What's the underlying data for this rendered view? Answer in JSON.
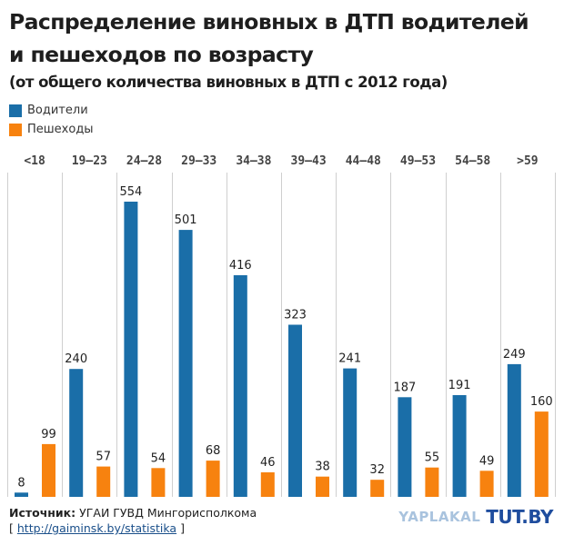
{
  "header": {
    "title_line1": "Распределение виновных в ДТП водителей",
    "title_line2": "и пешеходов по возрасту",
    "subtitle": "(от общего количества виновных в ДТП с 2012 года)"
  },
  "legend": [
    {
      "label": "Водители",
      "color": "#1a6ea8"
    },
    {
      "label": "Пешеходы",
      "color": "#f7820f"
    }
  ],
  "footer": {
    "source_label": "Источник:",
    "source_text": "УГАИ ГУВД Мингорисполкома",
    "link_open": "[",
    "link": "http://gaiminsk.by/statistika",
    "link_close": "]",
    "watermark1": "YAPLAKAL",
    "watermark2": "TUT.BY"
  },
  "chart_data": {
    "type": "bar",
    "title": "Распределение виновных в ДТП водителей и пешеходов по возрасту",
    "subtitle": "(от общего количества виновных в ДТП с 2012 года)",
    "xlabel": "",
    "ylabel": "",
    "categories": [
      "<18",
      "19-23",
      "24-28",
      "29-33",
      "34-38",
      "39-43",
      "44-48",
      "49-53",
      "54-58",
      ">59"
    ],
    "series": [
      {
        "name": "Водители",
        "color": "#1a6ea8",
        "values": [
          8,
          240,
          554,
          501,
          416,
          323,
          241,
          187,
          191,
          249
        ]
      },
      {
        "name": "Пешеходы",
        "color": "#f7820f",
        "values": [
          99,
          57,
          54,
          68,
          46,
          38,
          32,
          55,
          49,
          160
        ]
      }
    ],
    "ylim": [
      0,
      554
    ],
    "grid": "vertical category separators",
    "legend_position": "top-left",
    "data_labels": true
  }
}
